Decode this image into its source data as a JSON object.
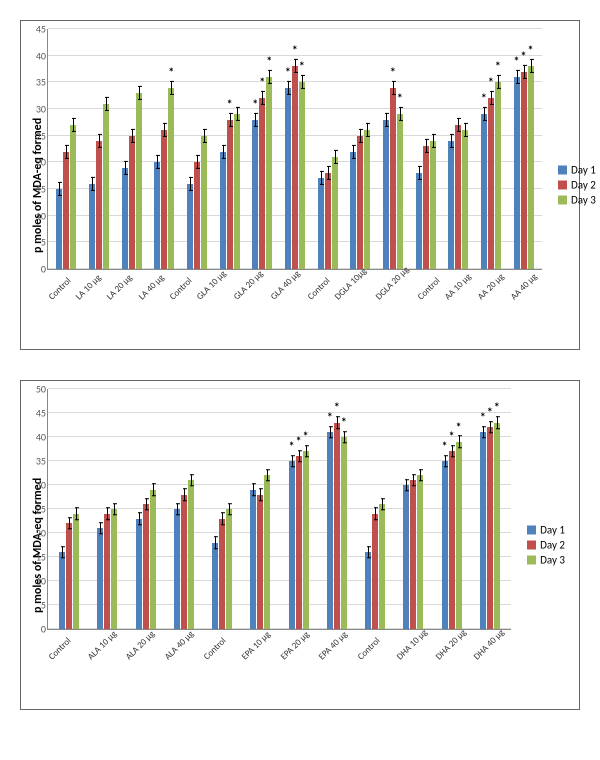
{
  "colors": {
    "day1": "#4f81bd",
    "day2": "#c0504d",
    "day3": "#9bbb59",
    "grid": "#d9d9d9",
    "axis": "#888888"
  },
  "legend": [
    {
      "label": "Day 1",
      "color_key": "day1"
    },
    {
      "label": "Day 2",
      "color_key": "day2"
    },
    {
      "label": "Day 3",
      "color_key": "day3"
    }
  ],
  "charts": [
    {
      "ylabel": "p moles of MDA-eq formed",
      "ymax": 45,
      "ystep": 5,
      "error": 1.3,
      "groups": [
        {
          "label": "Control",
          "d1": 15,
          "d2": 22,
          "d3": 27,
          "s1": false,
          "s2": false,
          "s3": false
        },
        {
          "label": "LA 10 µg",
          "d1": 16,
          "d2": 24,
          "d3": 31,
          "s1": false,
          "s2": false,
          "s3": false
        },
        {
          "label": "LA 20 µg",
          "d1": 19,
          "d2": 25,
          "d3": 33,
          "s1": false,
          "s2": false,
          "s3": false
        },
        {
          "label": "LA 40 µg",
          "d1": 20,
          "d2": 26,
          "d3": 34,
          "s1": false,
          "s2": false,
          "s3": true
        },
        {
          "label": "Control",
          "d1": 16,
          "d2": 20,
          "d3": 25,
          "s1": false,
          "s2": false,
          "s3": false
        },
        {
          "label": "GLA 10 µg",
          "d1": 22,
          "d2": 28,
          "d3": 29,
          "s1": false,
          "s2": true,
          "s3": false
        },
        {
          "label": "GLA 20 µg",
          "d1": 28,
          "d2": 32,
          "d3": 36,
          "s1": true,
          "s2": true,
          "s3": true
        },
        {
          "label": "GLA 40 µg",
          "d1": 34,
          "d2": 38,
          "d3": 35,
          "s1": true,
          "s2": true,
          "s3": true
        },
        {
          "label": "Control",
          "d1": 17,
          "d2": 18,
          "d3": 21,
          "s1": false,
          "s2": false,
          "s3": false
        },
        {
          "label": "DGLA 10µg",
          "d1": 22,
          "d2": 25,
          "d3": 26,
          "s1": false,
          "s2": false,
          "s3": false
        },
        {
          "label": "DGLA 20 µg",
          "d1": 28,
          "d2": 34,
          "d3": 29,
          "s1": false,
          "s2": true,
          "s3": true
        },
        {
          "label": "Control",
          "d1": 18,
          "d2": 23,
          "d3": 24,
          "s1": false,
          "s2": false,
          "s3": false
        },
        {
          "label": "AA 10 µg",
          "d1": 24,
          "d2": 27,
          "d3": 26,
          "s1": false,
          "s2": false,
          "s3": false
        },
        {
          "label": "AA 20 µg",
          "d1": 29,
          "d2": 32,
          "d3": 35,
          "s1": true,
          "s2": true,
          "s3": true
        },
        {
          "label": "AA 40 µg",
          "d1": 36,
          "d2": 37,
          "d3": 38,
          "s1": true,
          "s2": true,
          "s3": true
        }
      ]
    },
    {
      "ylabel": "p moles of MDA-eq formed",
      "ymax": 50,
      "ystep": 5,
      "error": 1.3,
      "groups": [
        {
          "label": "Control",
          "d1": 16,
          "d2": 22,
          "d3": 24,
          "s1": false,
          "s2": false,
          "s3": false
        },
        {
          "label": "ALA 10 µg",
          "d1": 21,
          "d2": 24,
          "d3": 25,
          "s1": false,
          "s2": false,
          "s3": false
        },
        {
          "label": "ALA 20 µg",
          "d1": 23,
          "d2": 26,
          "d3": 29,
          "s1": false,
          "s2": false,
          "s3": false
        },
        {
          "label": "ALA 40 µg",
          "d1": 25,
          "d2": 28,
          "d3": 31,
          "s1": false,
          "s2": false,
          "s3": false
        },
        {
          "label": "Control",
          "d1": 18,
          "d2": 23,
          "d3": 25,
          "s1": false,
          "s2": false,
          "s3": false
        },
        {
          "label": "EPA 10 µg",
          "d1": 29,
          "d2": 28,
          "d3": 32,
          "s1": false,
          "s2": false,
          "s3": false
        },
        {
          "label": "EPA 20 µg",
          "d1": 35,
          "d2": 36,
          "d3": 37,
          "s1": true,
          "s2": true,
          "s3": true
        },
        {
          "label": "EPA 40 µg",
          "d1": 41,
          "d2": 43,
          "d3": 40,
          "s1": true,
          "s2": true,
          "s3": true
        },
        {
          "label": "Control",
          "d1": 16,
          "d2": 24,
          "d3": 26,
          "s1": false,
          "s2": false,
          "s3": false
        },
        {
          "label": "DHA 10 µg",
          "d1": 30,
          "d2": 31,
          "d3": 32,
          "s1": false,
          "s2": false,
          "s3": false
        },
        {
          "label": "DHA 20 µg",
          "d1": 35,
          "d2": 37,
          "d3": 39,
          "s1": true,
          "s2": true,
          "s3": true
        },
        {
          "label": "DHA 40 µg",
          "d1": 41,
          "d2": 42,
          "d3": 43,
          "s1": true,
          "s2": true,
          "s3": true
        }
      ]
    }
  ]
}
